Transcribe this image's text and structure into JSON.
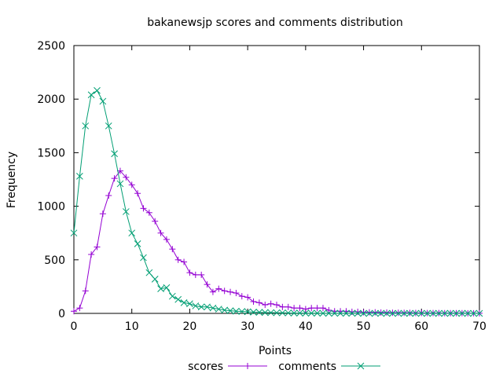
{
  "chart_data": {
    "type": "line",
    "title": "bakanewsjp scores and comments distribution",
    "xlabel": "Points",
    "ylabel": "Frequency",
    "xlim": [
      0,
      70
    ],
    "ylim": [
      0,
      2500
    ],
    "xticks": [
      0,
      10,
      20,
      30,
      40,
      50,
      60,
      70
    ],
    "yticks": [
      0,
      500,
      1000,
      1500,
      2000,
      2500
    ],
    "grid": false,
    "legend_position": "bottom",
    "series": [
      {
        "name": "scores",
        "color": "#9400d3",
        "marker": "plus",
        "x": [
          0,
          1,
          2,
          3,
          4,
          5,
          6,
          7,
          8,
          9,
          10,
          11,
          12,
          13,
          14,
          15,
          16,
          17,
          18,
          19,
          20,
          21,
          22,
          23,
          24,
          25,
          26,
          27,
          28,
          29,
          30,
          31,
          32,
          33,
          34,
          35,
          36,
          37,
          38,
          39,
          40,
          41,
          42,
          43,
          44,
          45,
          46,
          47,
          48,
          49,
          50,
          51,
          52,
          53,
          54,
          55,
          56,
          57,
          58,
          59,
          60,
          61,
          62,
          63,
          64,
          65,
          66,
          67,
          68,
          69,
          70
        ],
        "values": [
          20,
          50,
          210,
          550,
          620,
          930,
          1100,
          1260,
          1330,
          1270,
          1200,
          1120,
          980,
          940,
          860,
          750,
          690,
          600,
          500,
          480,
          380,
          360,
          360,
          270,
          200,
          230,
          210,
          200,
          190,
          160,
          150,
          110,
          100,
          80,
          90,
          80,
          60,
          60,
          50,
          50,
          40,
          50,
          50,
          50,
          30,
          20,
          20,
          20,
          15,
          15,
          10,
          10,
          10,
          8,
          8,
          6,
          6,
          5,
          5,
          4,
          4,
          3,
          3,
          3,
          2,
          2,
          2,
          2,
          1,
          1,
          1
        ]
      },
      {
        "name": "comments",
        "color": "#009e73",
        "marker": "cross",
        "x": [
          0,
          1,
          2,
          3,
          4,
          5,
          6,
          7,
          8,
          9,
          10,
          11,
          12,
          13,
          14,
          15,
          16,
          17,
          18,
          19,
          20,
          21,
          22,
          23,
          24,
          25,
          26,
          27,
          28,
          29,
          30,
          31,
          32,
          33,
          34,
          35,
          36,
          37,
          38,
          39,
          40,
          41,
          42,
          43,
          44,
          45,
          46,
          47,
          48,
          49,
          50,
          51,
          52,
          53,
          54,
          55,
          56,
          57,
          58,
          59,
          60,
          61,
          62,
          63,
          64,
          65,
          66,
          67,
          68,
          69,
          70
        ],
        "values": [
          750,
          1280,
          1750,
          2040,
          2080,
          1980,
          1750,
          1490,
          1210,
          950,
          750,
          650,
          520,
          380,
          320,
          230,
          240,
          160,
          130,
          100,
          90,
          70,
          60,
          60,
          50,
          40,
          30,
          25,
          20,
          18,
          15,
          12,
          10,
          8,
          7,
          6,
          5,
          4,
          3,
          3,
          2,
          2,
          2,
          1,
          1,
          1,
          1,
          1,
          1,
          1,
          0,
          0,
          0,
          0,
          0,
          0,
          0,
          0,
          0,
          0,
          0,
          0,
          0,
          0,
          0,
          0,
          0,
          0,
          0,
          0,
          0
        ]
      }
    ]
  }
}
